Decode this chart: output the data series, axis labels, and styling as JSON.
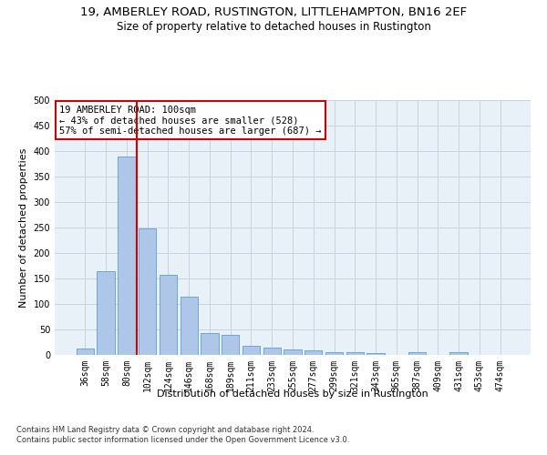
{
  "title": "19, AMBERLEY ROAD, RUSTINGTON, LITTLEHAMPTON, BN16 2EF",
  "subtitle": "Size of property relative to detached houses in Rustington",
  "xlabel": "Distribution of detached houses by size in Rustington",
  "ylabel": "Number of detached properties",
  "categories": [
    "36sqm",
    "58sqm",
    "80sqm",
    "102sqm",
    "124sqm",
    "146sqm",
    "168sqm",
    "189sqm",
    "211sqm",
    "233sqm",
    "255sqm",
    "277sqm",
    "299sqm",
    "321sqm",
    "343sqm",
    "365sqm",
    "387sqm",
    "409sqm",
    "431sqm",
    "453sqm",
    "474sqm"
  ],
  "values": [
    12,
    165,
    390,
    248,
    157,
    114,
    43,
    40,
    18,
    15,
    10,
    9,
    6,
    5,
    3,
    0,
    5,
    0,
    5,
    0,
    0
  ],
  "bar_color": "#aec6e8",
  "bar_edge_color": "#5a9fd4",
  "vline_color": "#cc0000",
  "vline_x_index": 2,
  "annotation_text": "19 AMBERLEY ROAD: 100sqm\n← 43% of detached houses are smaller (528)\n57% of semi-detached houses are larger (687) →",
  "annotation_box_color": "#ffffff",
  "annotation_box_edge": "#cc0000",
  "ylim": [
    0,
    500
  ],
  "yticks": [
    0,
    50,
    100,
    150,
    200,
    250,
    300,
    350,
    400,
    450,
    500
  ],
  "grid_color": "#c8d4e0",
  "background_color": "#e8f0f8",
  "footnote": "Contains HM Land Registry data © Crown copyright and database right 2024.\nContains public sector information licensed under the Open Government Licence v3.0.",
  "title_fontsize": 9.5,
  "subtitle_fontsize": 8.5,
  "xlabel_fontsize": 8,
  "ylabel_fontsize": 8,
  "tick_fontsize": 7,
  "annotation_fontsize": 7.5,
  "footnote_fontsize": 6
}
